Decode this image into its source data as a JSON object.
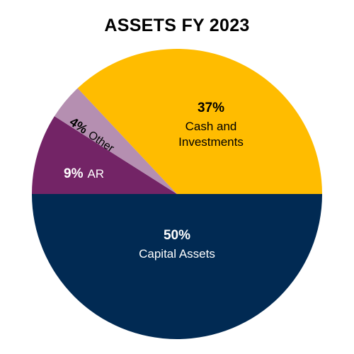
{
  "chart_data": {
    "type": "pie",
    "title": "ASSETS FY 2023",
    "slices": [
      {
        "label": "Capital Assets",
        "percent_label": "50%",
        "value": 50,
        "color": "#012a53"
      },
      {
        "label": "AR",
        "percent_label": "9%",
        "value": 9,
        "color": "#732466"
      },
      {
        "label": "Other",
        "percent_label": "4%",
        "value": 4,
        "color": "#b58fb1"
      },
      {
        "label": "Cash and Investments",
        "percent_label": "37%",
        "value": 37,
        "color": "#ffbc00"
      }
    ]
  }
}
